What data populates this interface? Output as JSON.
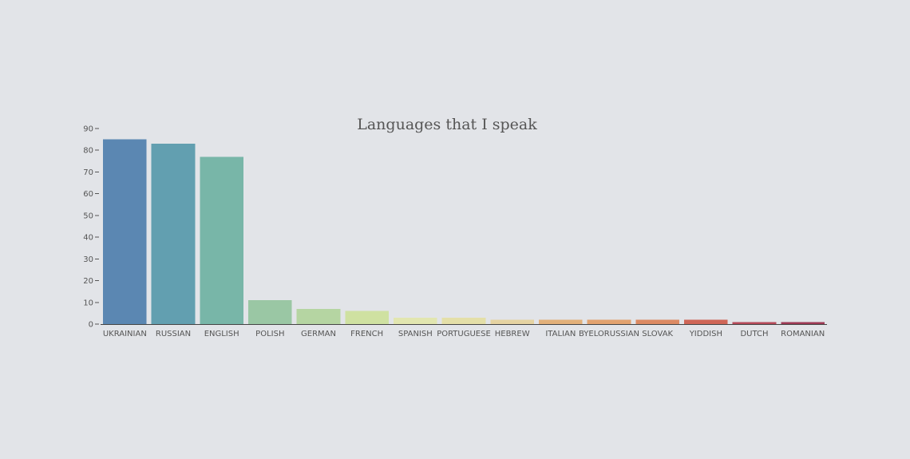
{
  "chart_data": {
    "type": "bar",
    "title": "Languages that I speak",
    "xlabel": "",
    "ylabel": "",
    "ylim": [
      0,
      90
    ],
    "yticks": [
      0,
      10,
      20,
      30,
      40,
      50,
      60,
      70,
      80,
      90
    ],
    "categories": [
      "UKRAINIAN",
      "RUSSIAN",
      "ENGLISH",
      "POLISH",
      "GERMAN",
      "FRENCH",
      "SPANISH",
      "PORTUGUESE",
      "HEBREW",
      "ITALIAN",
      "BYELORUSSIAN",
      "SLOVAK",
      "YIDDISH",
      "DUTCH",
      "ROMANIAN"
    ],
    "values": [
      85,
      83,
      77,
      11,
      7,
      6,
      3,
      3,
      2,
      2,
      2,
      2,
      2,
      1,
      1
    ],
    "colors": [
      "#5b87b2",
      "#629fb0",
      "#78b6a8",
      "#9ac7a4",
      "#b5d5a2",
      "#cfe1a1",
      "#e2e6b0",
      "#e4dfa8",
      "#e5d3a2",
      "#e2b07a",
      "#e2a26f",
      "#dc8a63",
      "#cf6657",
      "#b64b5a",
      "#9e3a55"
    ],
    "grid": false,
    "legend": "none"
  }
}
